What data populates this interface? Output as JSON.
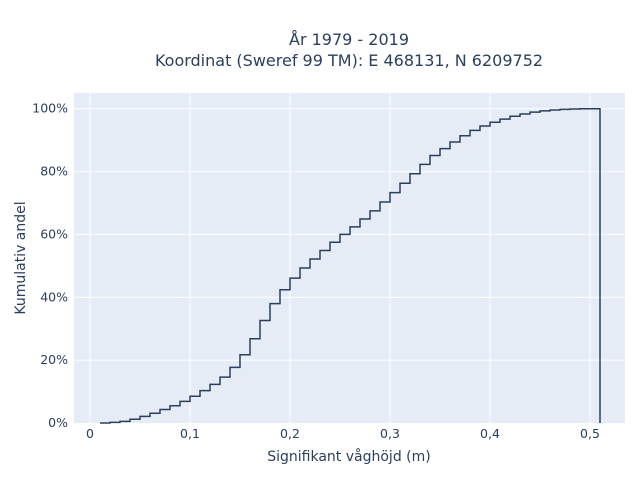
{
  "chart_data": {
    "type": "line",
    "step": "post",
    "title": "År 1979 - 2019",
    "subtitle": "Koordinat (Sweref 99 TM): E 468131, N 6209752",
    "xlabel": "Signifikant våghöjd (m)",
    "ylabel": "Kumulativ andel",
    "xlim": [
      -0.016,
      0.535
    ],
    "ylim": [
      0,
      1.05
    ],
    "xticks": [
      0,
      0.1,
      0.2,
      0.3,
      0.4,
      0.5
    ],
    "xtick_labels": [
      "0",
      "0,1",
      "0,2",
      "0,3",
      "0,4",
      "0,5"
    ],
    "yticks": [
      0,
      0.2,
      0.4,
      0.6,
      0.8,
      1.0
    ],
    "ytick_labels": [
      "0%",
      "20%",
      "40%",
      "60%",
      "80%",
      "100%"
    ],
    "grid": true,
    "background": "#e5ecf6",
    "line_color": "#2a3f5f",
    "x": [
      0.01,
      0.02,
      0.03,
      0.04,
      0.05,
      0.06,
      0.07,
      0.08,
      0.09,
      0.1,
      0.11,
      0.12,
      0.13,
      0.14,
      0.15,
      0.16,
      0.17,
      0.18,
      0.19,
      0.2,
      0.21,
      0.22,
      0.23,
      0.24,
      0.25,
      0.26,
      0.27,
      0.28,
      0.29,
      0.3,
      0.31,
      0.32,
      0.33,
      0.34,
      0.35,
      0.36,
      0.37,
      0.38,
      0.39,
      0.4,
      0.41,
      0.42,
      0.43,
      0.44,
      0.45,
      0.46,
      0.47,
      0.48,
      0.49,
      0.5,
      0.51
    ],
    "y": [
      0.0,
      0.002,
      0.005,
      0.012,
      0.021,
      0.031,
      0.043,
      0.055,
      0.069,
      0.085,
      0.103,
      0.123,
      0.146,
      0.177,
      0.217,
      0.268,
      0.326,
      0.38,
      0.424,
      0.461,
      0.493,
      0.522,
      0.549,
      0.575,
      0.6,
      0.624,
      0.649,
      0.675,
      0.703,
      0.733,
      0.763,
      0.793,
      0.823,
      0.851,
      0.873,
      0.894,
      0.914,
      0.931,
      0.945,
      0.957,
      0.967,
      0.976,
      0.983,
      0.989,
      0.993,
      0.996,
      0.998,
      0.999,
      1.0,
      1.0,
      0.0
    ]
  }
}
